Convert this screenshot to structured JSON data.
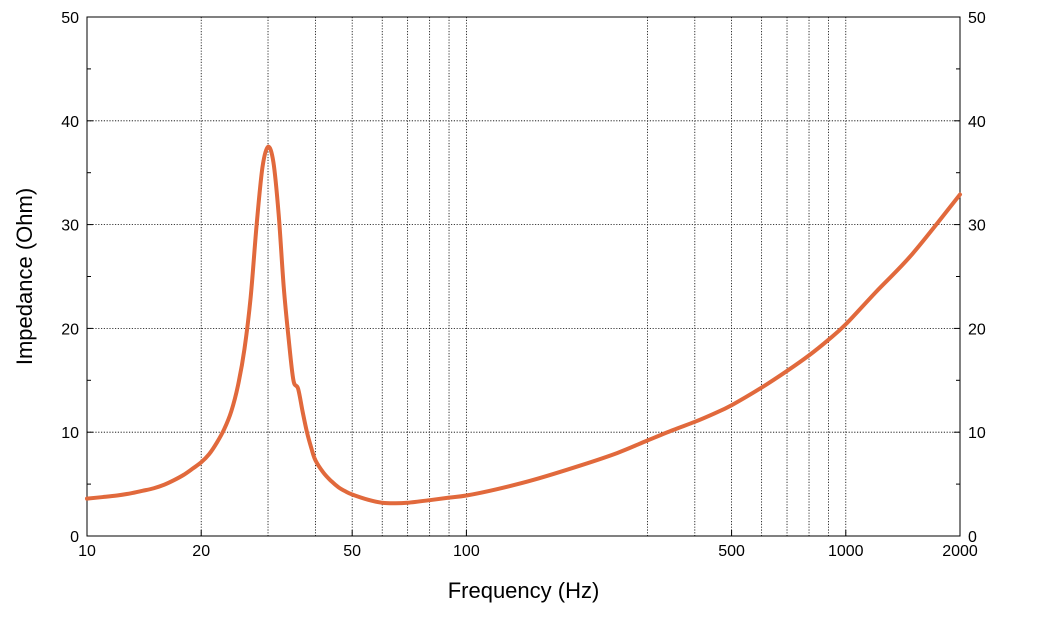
{
  "chart_data": {
    "type": "line",
    "title": "",
    "xlabel": "Frequency (Hz)",
    "ylabel": "Impedance (Ohm)",
    "x_scale": "log",
    "xlim": [
      10,
      2000
    ],
    "ylim": [
      0,
      50
    ],
    "x_ticks": [
      10,
      20,
      50,
      100,
      500,
      1000,
      2000
    ],
    "x_tick_labels": [
      "10",
      "20",
      "50",
      "100",
      "500",
      "1000",
      "2000"
    ],
    "x_grid": [
      20,
      30,
      40,
      50,
      60,
      70,
      80,
      90,
      100,
      300,
      400,
      500,
      600,
      700,
      800,
      900,
      1000
    ],
    "y_ticks": [
      0,
      10,
      20,
      30,
      40,
      50
    ],
    "y_tick_labels": [
      "0",
      "10",
      "20",
      "30",
      "40",
      "50"
    ],
    "y_minor_step": 5,
    "right_axis_labels": true,
    "grid": true,
    "legend": "none",
    "color": "#e1693c",
    "series": [
      {
        "x": [
          10,
          11,
          12,
          13,
          14,
          15,
          16,
          17,
          18,
          19,
          20,
          21,
          22,
          23,
          24,
          25,
          26,
          27,
          28,
          29,
          30,
          31,
          32,
          33,
          34,
          35,
          36,
          37,
          38,
          39,
          40,
          42,
          44,
          46,
          48,
          50,
          55,
          60,
          65,
          70,
          80,
          90,
          100,
          120,
          150,
          200,
          250,
          300,
          350,
          400,
          450,
          500,
          600,
          700,
          800,
          900,
          1000,
          1200,
          1500,
          2000
        ],
        "y": [
          3.6,
          3.75,
          3.9,
          4.1,
          4.35,
          4.6,
          4.95,
          5.4,
          5.9,
          6.5,
          7.1,
          7.9,
          9.0,
          10.3,
          12.0,
          14.5,
          18.0,
          23.0,
          30.0,
          35.5,
          37.5,
          36.0,
          31.0,
          24.0,
          19.0,
          15.0,
          14.2,
          12.0,
          10.0,
          8.5,
          7.3,
          6.1,
          5.3,
          4.7,
          4.3,
          4.0,
          3.5,
          3.2,
          3.15,
          3.2,
          3.45,
          3.7,
          3.9,
          4.5,
          5.4,
          6.8,
          8.0,
          9.2,
          10.2,
          11.0,
          11.8,
          12.6,
          14.3,
          15.9,
          17.4,
          18.9,
          20.4,
          23.5,
          27.2,
          32.9
        ]
      }
    ]
  }
}
